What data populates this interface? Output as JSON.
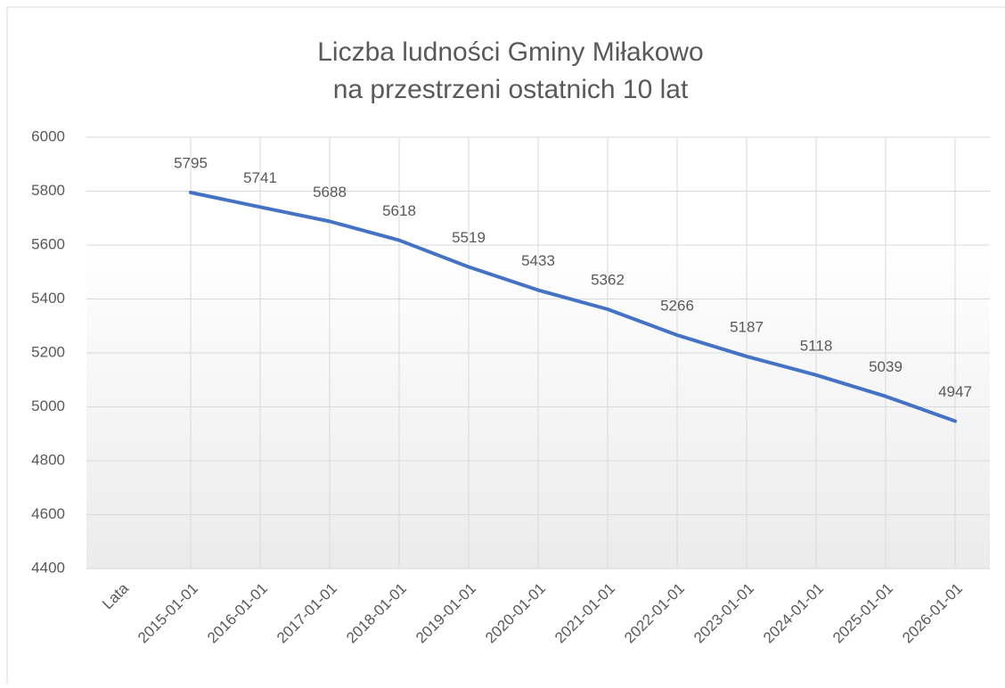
{
  "chart_data": {
    "type": "line",
    "title": [
      "Liczba ludności Gminy Miłakowo",
      "na przestrzeni ostatnich 10 lat"
    ],
    "categories": [
      "Lata",
      "2015-01-01",
      "2016-01-01",
      "2017-01-01",
      "2018-01-01",
      "2019-01-01",
      "2020-01-01",
      "2021-01-01",
      "2022-01-01",
      "2023-01-01",
      "2024-01-01",
      "2025-01-01",
      "2026-01-01"
    ],
    "series": [
      {
        "color": "#4472c4",
        "values": [
          null,
          5795,
          5741,
          5688,
          5618,
          5519,
          5433,
          5362,
          5266,
          5187,
          5118,
          5039,
          4947
        ]
      }
    ],
    "ylim": [
      4400,
      6000
    ],
    "yticks": [
      4400,
      4600,
      4800,
      5000,
      5200,
      5400,
      5600,
      5800,
      6000
    ],
    "grid": true,
    "data_labels": true
  }
}
